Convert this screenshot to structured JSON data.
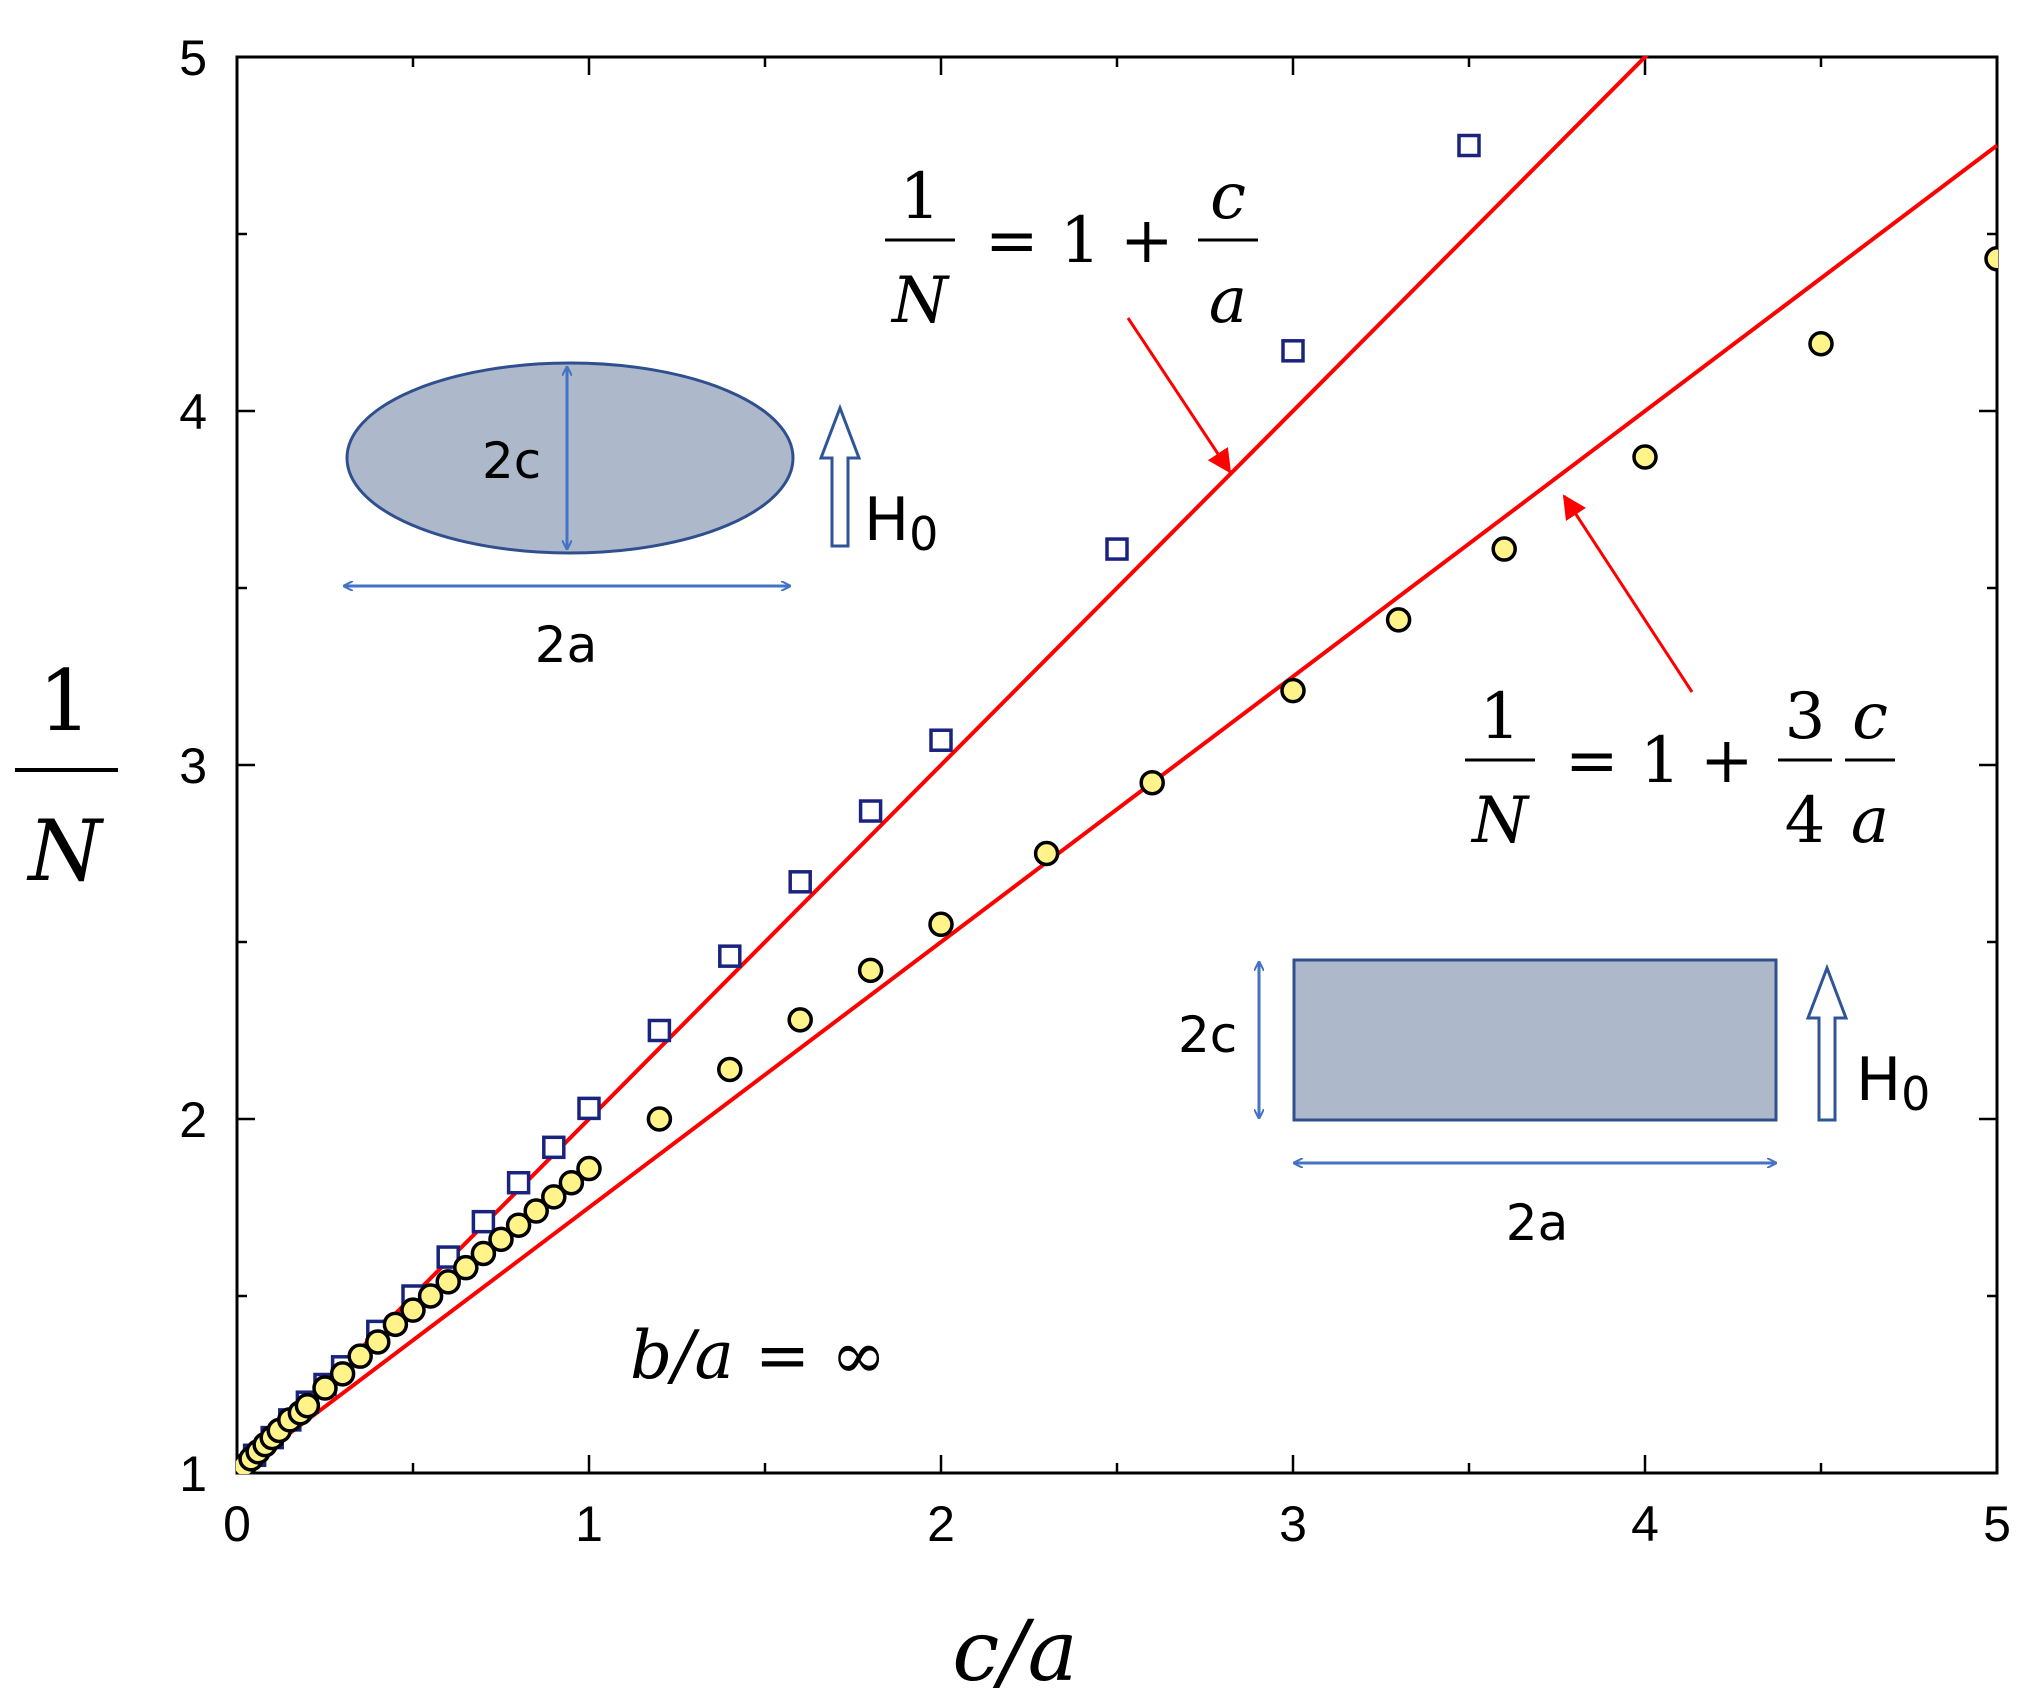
{
  "chart_data": {
    "type": "scatter",
    "xlabel": "c/a",
    "ylabel": "1/N",
    "xlim": [
      0,
      5
    ],
    "ylim": [
      1,
      5
    ],
    "x_ticks": [
      "0",
      "1",
      "2",
      "3",
      "4",
      "5"
    ],
    "y_ticks": [
      "1",
      "2",
      "3",
      "4",
      "5"
    ],
    "grid": false,
    "annotation": "b/a = ∞",
    "series": [
      {
        "marker": "open-square",
        "color": "#1a237e",
        "points": [
          [
            0.05,
            1.05
          ],
          [
            0.1,
            1.1
          ],
          [
            0.15,
            1.15
          ],
          [
            0.2,
            1.2
          ],
          [
            0.25,
            1.25
          ],
          [
            0.3,
            1.3
          ],
          [
            0.4,
            1.4
          ],
          [
            0.5,
            1.5
          ],
          [
            0.6,
            1.61
          ],
          [
            0.7,
            1.71
          ],
          [
            0.8,
            1.82
          ],
          [
            0.9,
            1.92
          ],
          [
            1.0,
            2.03
          ],
          [
            1.2,
            2.25
          ],
          [
            1.4,
            2.46
          ],
          [
            1.6,
            2.67
          ],
          [
            1.8,
            2.87
          ],
          [
            2.0,
            3.07
          ],
          [
            2.5,
            3.61
          ],
          [
            3.0,
            4.17
          ],
          [
            3.5,
            4.75
          ]
        ]
      },
      {
        "marker": "filled-circle",
        "color": "#fff38a",
        "edge_color": "#000000",
        "points": [
          [
            0.02,
            1.02
          ],
          [
            0.04,
            1.04
          ],
          [
            0.06,
            1.06
          ],
          [
            0.08,
            1.08
          ],
          [
            0.1,
            1.1
          ],
          [
            0.12,
            1.12
          ],
          [
            0.15,
            1.15
          ],
          [
            0.18,
            1.17
          ],
          [
            0.2,
            1.19
          ],
          [
            0.25,
            1.24
          ],
          [
            0.3,
            1.28
          ],
          [
            0.35,
            1.33
          ],
          [
            0.4,
            1.37
          ],
          [
            0.45,
            1.42
          ],
          [
            0.5,
            1.46
          ],
          [
            0.55,
            1.5
          ],
          [
            0.6,
            1.54
          ],
          [
            0.65,
            1.58
          ],
          [
            0.7,
            1.62
          ],
          [
            0.75,
            1.66
          ],
          [
            0.8,
            1.7
          ],
          [
            0.85,
            1.74
          ],
          [
            0.9,
            1.78
          ],
          [
            0.95,
            1.82
          ],
          [
            1.0,
            1.86
          ],
          [
            1.2,
            2.0
          ],
          [
            1.4,
            2.14
          ],
          [
            1.6,
            2.28
          ],
          [
            1.8,
            2.42
          ],
          [
            2.0,
            2.55
          ],
          [
            2.3,
            2.75
          ],
          [
            2.6,
            2.95
          ],
          [
            3.0,
            3.21
          ],
          [
            3.3,
            3.41
          ],
          [
            3.6,
            3.61
          ],
          [
            4.0,
            3.87
          ],
          [
            4.5,
            4.19
          ],
          [
            5.0,
            4.43
          ]
        ]
      }
    ],
    "lines": [
      {
        "slope": 1.0,
        "intercept": 1.0,
        "color": "#ff0000",
        "label": "1/N = 1 + c/a"
      },
      {
        "slope": 0.75,
        "intercept": 1.0,
        "color": "#ff0000",
        "label": "1/N = 1 + (3/4)(c/a)"
      }
    ]
  },
  "insets": {
    "ellipse": {
      "thickness_label": "2c",
      "width_label": "2a",
      "field_label": "H",
      "field_subscript": "0"
    },
    "rectangle": {
      "thickness_label": "2c",
      "width_label": "2a",
      "field_label": "H",
      "field_subscript": "0"
    }
  },
  "colors": {
    "shape_fill": "#adb9cb",
    "shape_stroke": "#2f4f8f",
    "dimension_arrow": "#4472c4",
    "fit_line": "#ff0000"
  }
}
